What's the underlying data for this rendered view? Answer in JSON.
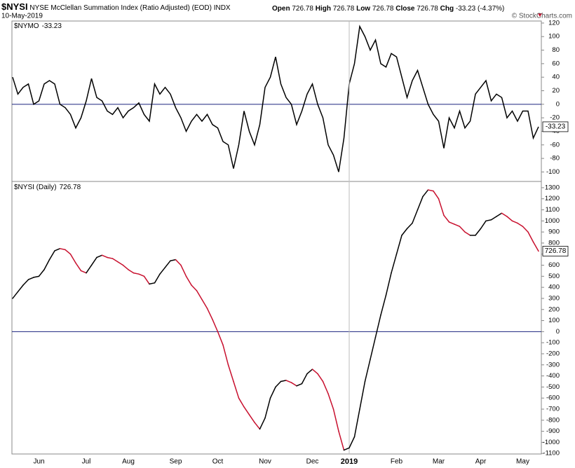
{
  "header": {
    "symbol": "$NYSI",
    "name": "NYSE McClellan Summation Index (Ratio Adjusted) (EOD)",
    "exchange": "INDX",
    "date": "10-May-2019",
    "open_label": "Open",
    "open": 726.78,
    "high_label": "High",
    "high": 726.78,
    "low_label": "Low",
    "low": 726.78,
    "close_label": "Close",
    "close": 726.78,
    "chg_label": "Chg",
    "chg": -33.23,
    "chg_pct": "(-4.37%)",
    "copyright": "© StockCharts.com"
  },
  "chart_data": [
    {
      "type": "line",
      "series": [
        {
          "name": "$NYMO",
          "color": "#000000",
          "values": [
            40,
            15,
            25,
            30,
            0,
            5,
            30,
            35,
            30,
            0,
            -5,
            -15,
            -35,
            -20,
            5,
            38,
            10,
            5,
            -10,
            -15,
            -5,
            -20,
            -10,
            -5,
            2,
            -15,
            -25,
            30,
            15,
            25,
            15,
            -5,
            -20,
            -40,
            -25,
            -15,
            -25,
            -15,
            -30,
            -35,
            -55,
            -60,
            -95,
            -60,
            -10,
            -40,
            -60,
            -30,
            25,
            40,
            70,
            30,
            10,
            0,
            -30,
            -10,
            15,
            30,
            0,
            -20,
            -60,
            -75,
            -100,
            -50,
            30,
            60,
            115,
            100,
            80,
            95,
            60,
            55,
            75,
            70,
            40,
            10,
            35,
            50,
            25,
            0,
            -15,
            -25,
            -65,
            -20,
            -35,
            -10,
            -35,
            -25,
            15,
            25,
            35,
            5,
            15,
            10,
            -20,
            -10,
            -25,
            -10,
            -10,
            -50,
            -33.23
          ]
        }
      ],
      "ylim": [
        -113,
        123
      ],
      "yticks": [
        120,
        100,
        80,
        60,
        40,
        20,
        0,
        -20,
        -40,
        -60,
        -80,
        -100
      ],
      "zero_line_color": "#1a237e"
    },
    {
      "type": "line",
      "categories": [
        null,
        null,
        null,
        null,
        null,
        "Jun",
        null,
        null,
        null,
        null,
        null,
        null,
        null,
        null,
        "Jul",
        null,
        null,
        null,
        null,
        null,
        null,
        null,
        "Aug",
        null,
        null,
        null,
        null,
        null,
        null,
        null,
        null,
        "Sep",
        null,
        null,
        null,
        null,
        null,
        null,
        null,
        "Oct",
        null,
        null,
        null,
        null,
        null,
        null,
        null,
        null,
        "Nov",
        null,
        null,
        null,
        null,
        null,
        null,
        null,
        null,
        "Dec",
        null,
        null,
        null,
        null,
        null,
        null,
        "2019",
        null,
        null,
        null,
        null,
        null,
        null,
        null,
        null,
        "Feb",
        null,
        null,
        null,
        null,
        null,
        null,
        null,
        "Mar",
        null,
        null,
        null,
        null,
        null,
        null,
        null,
        "Apr",
        null,
        null,
        null,
        null,
        null,
        null,
        null,
        "May",
        null,
        null,
        null
      ],
      "year_category": 64,
      "series": [
        {
          "name": "$NYSI (Daily)",
          "color": "#000000",
          "down_color": "#c8102e",
          "values": [
            300,
            360,
            420,
            470,
            490,
            500,
            560,
            650,
            730,
            750,
            740,
            700,
            620,
            550,
            530,
            600,
            670,
            690,
            670,
            660,
            630,
            600,
            560,
            530,
            520,
            500,
            430,
            440,
            520,
            580,
            640,
            650,
            600,
            500,
            420,
            370,
            290,
            210,
            110,
            0,
            -120,
            -300,
            -450,
            -600,
            -680,
            -750,
            -820,
            -880,
            -780,
            -600,
            -500,
            -450,
            -440,
            -460,
            -490,
            -470,
            -380,
            -340,
            -380,
            -450,
            -560,
            -700,
            -900,
            -1070,
            -1050,
            -950,
            -700,
            -450,
            -250,
            -50,
            150,
            330,
            530,
            700,
            870,
            930,
            980,
            1100,
            1220,
            1280,
            1270,
            1200,
            1050,
            990,
            970,
            950,
            900,
            870,
            870,
            930,
            1000,
            1010,
            1040,
            1070,
            1040,
            1000,
            980,
            950,
            900,
            810,
            726.78
          ]
        }
      ],
      "ylim": [
        -1105,
        1350
      ],
      "yticks": [
        1300,
        1200,
        1100,
        1000,
        900,
        800,
        700,
        600,
        500,
        400,
        300,
        200,
        100,
        0,
        -100,
        -200,
        -300,
        -400,
        -500,
        -600,
        -700,
        -800,
        -900,
        -1000,
        -1100
      ],
      "zero_line_color": "#1a237e"
    }
  ]
}
